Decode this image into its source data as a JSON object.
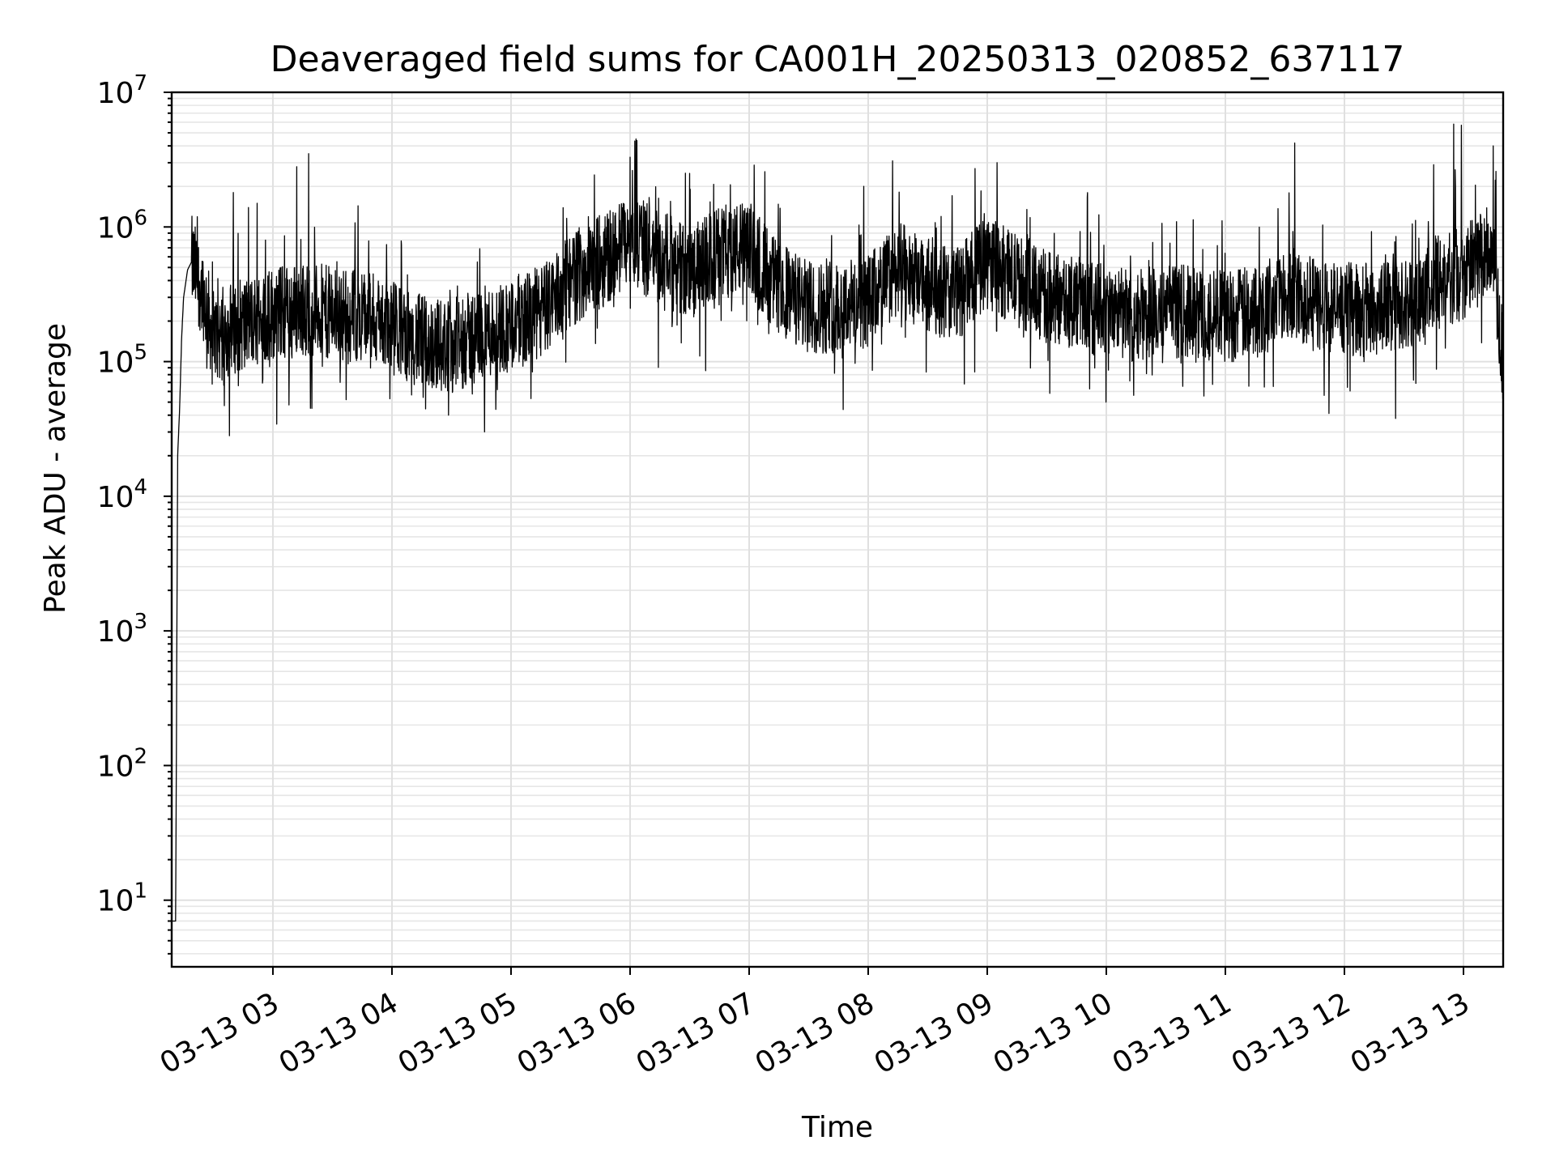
{
  "chart_data": {
    "type": "line",
    "title": "Deaveraged field sums for CA001H_20250313_020852_637117",
    "xlabel": "Time",
    "ylabel": "Peak ADU - average",
    "yscale": "log",
    "ylim": [
      3.2,
      10000000
    ],
    "xlim": [
      "2025-03-13 02:09",
      "2025-03-13 13:20"
    ],
    "grid": true,
    "legend": "none",
    "line_color": "#000000",
    "x_ticks": [
      "03-13 03",
      "03-13 04",
      "03-13 05",
      "03-13 06",
      "03-13 07",
      "03-13 08",
      "03-13 09",
      "03-13 10",
      "03-13 11",
      "03-13 12",
      "03-13 13"
    ],
    "x_tick_times": [
      "2025-03-13 03:00",
      "2025-03-13 04:00",
      "2025-03-13 05:00",
      "2025-03-13 06:00",
      "2025-03-13 07:00",
      "2025-03-13 08:00",
      "2025-03-13 09:00",
      "2025-03-13 10:00",
      "2025-03-13 11:00",
      "2025-03-13 12:00",
      "2025-03-13 13:00"
    ],
    "y_ticks": [
      {
        "value": 10,
        "base": "10",
        "exp": "1"
      },
      {
        "value": 100,
        "base": "10",
        "exp": "2"
      },
      {
        "value": 1000,
        "base": "10",
        "exp": "3"
      },
      {
        "value": 10000,
        "base": "10",
        "exp": "4"
      },
      {
        "value": 100000,
        "base": "10",
        "exp": "5"
      },
      {
        "value": 1000000,
        "base": "10",
        "exp": "6"
      },
      {
        "value": 10000000,
        "base": "10",
        "exp": "7"
      }
    ],
    "series": [
      {
        "points": [
          {
            "t": "2025-03-13 02:09",
            "v": 7
          },
          {
            "t": "2025-03-13 02:10",
            "v": 7
          },
          {
            "t": "2025-03-13 02:11",
            "v": 7
          },
          {
            "t": "2025-03-13 02:12",
            "v": 20000
          },
          {
            "t": "2025-03-13 02:13",
            "v": 45000
          },
          {
            "t": "2025-03-13 02:14",
            "v": 150000
          },
          {
            "t": "2025-03-13 02:15",
            "v": 300000
          },
          {
            "t": "2025-03-13 02:17",
            "v": 480000
          },
          {
            "t": "2025-03-13 02:19",
            "v": 550000
          },
          {
            "t": "2025-03-13 02:22",
            "v": 420000
          },
          {
            "t": "2025-03-13 02:25",
            "v": 320000
          },
          {
            "t": "2025-03-13 02:30",
            "v": 150000
          },
          {
            "t": "2025-03-13 02:40",
            "v": 180000
          },
          {
            "t": "2025-03-13 02:50",
            "v": 200000
          },
          {
            "t": "2025-03-13 03:00",
            "v": 230000
          },
          {
            "t": "2025-03-13 03:15",
            "v": 250000
          },
          {
            "t": "2025-03-13 03:30",
            "v": 230000
          },
          {
            "t": "2025-03-13 03:45",
            "v": 220000
          },
          {
            "t": "2025-03-13 04:00",
            "v": 180000
          },
          {
            "t": "2025-03-13 04:15",
            "v": 140000
          },
          {
            "t": "2025-03-13 04:30",
            "v": 130000
          },
          {
            "t": "2025-03-13 04:45",
            "v": 160000
          },
          {
            "t": "2025-03-13 05:00",
            "v": 190000
          },
          {
            "t": "2025-03-13 05:15",
            "v": 230000
          },
          {
            "t": "2025-03-13 05:30",
            "v": 400000
          },
          {
            "t": "2025-03-13 05:45",
            "v": 550000
          },
          {
            "t": "2025-03-13 06:00",
            "v": 800000
          },
          {
            "t": "2025-03-13 06:15",
            "v": 600000
          },
          {
            "t": "2025-03-13 06:30",
            "v": 450000
          },
          {
            "t": "2025-03-13 06:45",
            "v": 650000
          },
          {
            "t": "2025-03-13 07:00",
            "v": 700000
          },
          {
            "t": "2025-03-13 07:15",
            "v": 350000
          },
          {
            "t": "2025-03-13 07:30",
            "v": 250000
          },
          {
            "t": "2025-03-13 07:45",
            "v": 260000
          },
          {
            "t": "2025-03-13 08:00",
            "v": 280000
          },
          {
            "t": "2025-03-13 08:15",
            "v": 500000
          },
          {
            "t": "2025-03-13 08:30",
            "v": 350000
          },
          {
            "t": "2025-03-13 08:45",
            "v": 320000
          },
          {
            "t": "2025-03-13 09:00",
            "v": 550000
          },
          {
            "t": "2025-03-13 09:15",
            "v": 400000
          },
          {
            "t": "2025-03-13 09:30",
            "v": 300000
          },
          {
            "t": "2025-03-13 09:45",
            "v": 280000
          },
          {
            "t": "2025-03-13 10:00",
            "v": 230000
          },
          {
            "t": "2025-03-13 10:15",
            "v": 220000
          },
          {
            "t": "2025-03-13 10:30",
            "v": 240000
          },
          {
            "t": "2025-03-13 10:45",
            "v": 230000
          },
          {
            "t": "2025-03-13 11:00",
            "v": 220000
          },
          {
            "t": "2025-03-13 11:15",
            "v": 230000
          },
          {
            "t": "2025-03-13 11:30",
            "v": 350000
          },
          {
            "t": "2025-03-13 11:45",
            "v": 260000
          },
          {
            "t": "2025-03-13 12:00",
            "v": 250000
          },
          {
            "t": "2025-03-13 12:15",
            "v": 240000
          },
          {
            "t": "2025-03-13 12:30",
            "v": 260000
          },
          {
            "t": "2025-03-13 12:45",
            "v": 380000
          },
          {
            "t": "2025-03-13 13:00",
            "v": 450000
          },
          {
            "t": "2025-03-13 13:15",
            "v": 700000
          },
          {
            "t": "2025-03-13 13:20",
            "v": 90000
          }
        ],
        "noise_amplitude_decades": 0.35,
        "spikes": [
          {
            "t": "2025-03-13 02:40",
            "v": 1800000
          },
          {
            "t": "2025-03-13 02:52",
            "v": 1500000
          },
          {
            "t": "2025-03-13 03:12",
            "v": 2800000
          },
          {
            "t": "2025-03-13 03:18",
            "v": 3500000
          },
          {
            "t": "2025-03-13 06:00",
            "v": 3300000
          },
          {
            "t": "2025-03-13 06:03",
            "v": 4500000
          },
          {
            "t": "2025-03-13 06:30",
            "v": 2500000
          },
          {
            "t": "2025-03-13 09:05",
            "v": 3000000
          },
          {
            "t": "2025-03-13 11:35",
            "v": 4200000
          },
          {
            "t": "2025-03-13 12:45",
            "v": 2900000
          },
          {
            "t": "2025-03-13 12:55",
            "v": 5800000
          },
          {
            "t": "2025-03-13 12:59",
            "v": 5700000
          },
          {
            "t": "2025-03-13 13:15",
            "v": 4000000
          }
        ]
      }
    ]
  }
}
